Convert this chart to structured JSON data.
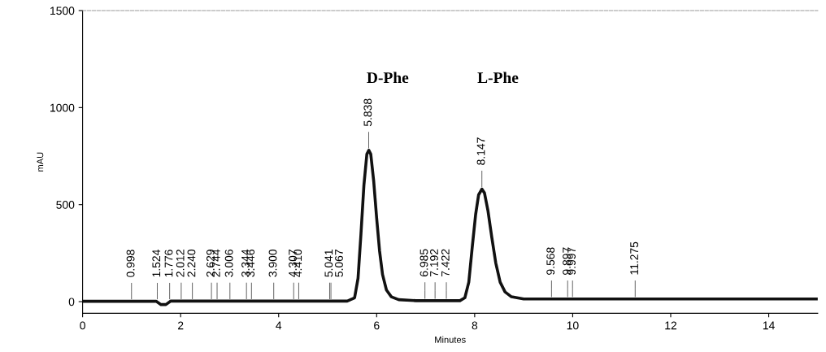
{
  "chart_data": {
    "type": "line",
    "xlabel": "Minutes",
    "ylabel": "mAU",
    "xlim": [
      0,
      15
    ],
    "ylim": [
      -60,
      1500
    ],
    "xticks": [
      0,
      2,
      4,
      6,
      8,
      10,
      12,
      14
    ],
    "yticks": [
      0,
      500,
      1000,
      1500
    ],
    "grid": false,
    "legend": false,
    "marker": "none",
    "line_style": "solid",
    "series": [
      {
        "color": "#111111",
        "x": [
          0,
          1.5,
          1.6,
          1.7,
          1.8,
          5.4,
          5.55,
          5.62,
          5.68,
          5.74,
          5.8,
          5.84,
          5.88,
          5.94,
          6.0,
          6.06,
          6.12,
          6.2,
          6.3,
          6.45,
          6.8,
          7.7,
          7.8,
          7.88,
          7.95,
          8.02,
          8.08,
          8.147,
          8.2,
          8.27,
          8.35,
          8.43,
          8.52,
          8.62,
          8.75,
          9.0,
          15
        ],
        "values": [
          2,
          2,
          -15,
          -15,
          3,
          3,
          20,
          120,
          350,
          600,
          760,
          780,
          760,
          620,
          430,
          260,
          140,
          60,
          25,
          10,
          5,
          5,
          20,
          100,
          280,
          450,
          550,
          580,
          560,
          470,
          330,
          200,
          100,
          50,
          25,
          14,
          14
        ]
      }
    ],
    "annotations": [
      "D-Phe",
      "L-Phe",
      {
        "text": "0.998",
        "x": 0.998,
        "y": 2
      },
      {
        "text": "1.524",
        "x": 1.524,
        "y": 2
      },
      {
        "text": "1.776",
        "x": 1.776,
        "y": 2
      },
      {
        "text": "2.012",
        "x": 2.012,
        "y": 3
      },
      {
        "text": "2.240",
        "x": 2.24,
        "y": 3
      },
      {
        "text": "2.629",
        "x": 2.629,
        "y": 3
      },
      {
        "text": "2.744",
        "x": 2.744,
        "y": 3
      },
      {
        "text": "3.006",
        "x": 3.006,
        "y": 3
      },
      {
        "text": "3.344",
        "x": 3.344,
        "y": 3
      },
      {
        "text": "3.446",
        "x": 3.446,
        "y": 3
      },
      {
        "text": "3.900",
        "x": 3.9,
        "y": 3
      },
      {
        "text": "4.307",
        "x": 4.307,
        "y": 3
      },
      {
        "text": "4.410",
        "x": 4.41,
        "y": 3
      },
      {
        "text": "5.041",
        "x": 5.041,
        "y": 3
      },
      {
        "text": "5.067",
        "x": 5.067,
        "y": 3
      },
      {
        "text": "5.838",
        "x": 5.838,
        "y": 780
      },
      {
        "text": "6.985",
        "x": 6.985,
        "y": 5
      },
      {
        "text": "7.192",
        "x": 7.192,
        "y": 5
      },
      {
        "text": "7.422",
        "x": 7.422,
        "y": 5
      },
      {
        "text": "8.147",
        "x": 8.147,
        "y": 580
      },
      {
        "text": "9.568",
        "x": 9.568,
        "y": 14
      },
      {
        "text": "9.897",
        "x": 9.897,
        "y": 14
      },
      {
        "text": "9.997",
        "x": 9.997,
        "y": 14
      },
      {
        "text": "11.275",
        "x": 11.275,
        "y": 14
      }
    ]
  }
}
